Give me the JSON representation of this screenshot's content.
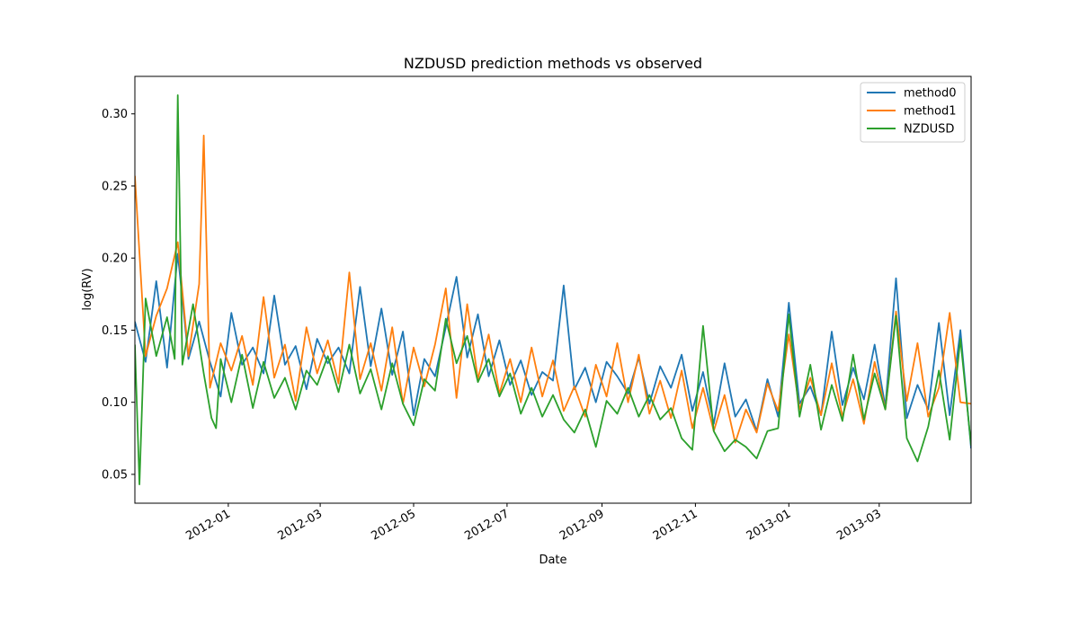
{
  "chart_data": {
    "type": "line",
    "title": "NZDUSD prediction methods vs observed",
    "xlabel": "Date",
    "ylabel": "log(RV)",
    "xlim": [
      "2011-11-01",
      "2013-04-30"
    ],
    "ylim": [
      0.03,
      0.326
    ],
    "x_ticks": [
      "2012-01",
      "2012-03",
      "2012-05",
      "2012-07",
      "2012-09",
      "2012-11",
      "2013-01",
      "2013-03"
    ],
    "y_ticks": [
      "0.05",
      "0.10",
      "0.15",
      "0.20",
      "0.25",
      "0.30"
    ],
    "legend_position": "top-right",
    "grid": false,
    "series": [
      {
        "name": "method0",
        "color": "#1f77b4",
        "points": [
          [
            "2011-11-01",
            0.156
          ],
          [
            "2011-11-08",
            0.128
          ],
          [
            "2011-11-15",
            0.184
          ],
          [
            "2011-11-22",
            0.124
          ],
          [
            "2011-11-29",
            0.203
          ],
          [
            "2011-12-06",
            0.13
          ],
          [
            "2011-12-13",
            0.156
          ],
          [
            "2011-12-20",
            0.128
          ],
          [
            "2011-12-27",
            0.104
          ],
          [
            "2012-01-03",
            0.162
          ],
          [
            "2012-01-10",
            0.126
          ],
          [
            "2012-01-17",
            0.138
          ],
          [
            "2012-01-24",
            0.12
          ],
          [
            "2012-01-31",
            0.174
          ],
          [
            "2012-02-07",
            0.126
          ],
          [
            "2012-02-14",
            0.139
          ],
          [
            "2012-02-21",
            0.109
          ],
          [
            "2012-02-28",
            0.144
          ],
          [
            "2012-03-06",
            0.127
          ],
          [
            "2012-03-13",
            0.138
          ],
          [
            "2012-03-20",
            0.12
          ],
          [
            "2012-03-27",
            0.18
          ],
          [
            "2012-04-03",
            0.125
          ],
          [
            "2012-04-10",
            0.165
          ],
          [
            "2012-04-17",
            0.119
          ],
          [
            "2012-04-24",
            0.149
          ],
          [
            "2012-05-01",
            0.091
          ],
          [
            "2012-05-08",
            0.13
          ],
          [
            "2012-05-15",
            0.118
          ],
          [
            "2012-05-22",
            0.152
          ],
          [
            "2012-05-29",
            0.187
          ],
          [
            "2012-06-05",
            0.131
          ],
          [
            "2012-06-12",
            0.161
          ],
          [
            "2012-06-19",
            0.118
          ],
          [
            "2012-06-26",
            0.143
          ],
          [
            "2012-07-03",
            0.112
          ],
          [
            "2012-07-10",
            0.129
          ],
          [
            "2012-07-17",
            0.105
          ],
          [
            "2012-07-24",
            0.121
          ],
          [
            "2012-07-31",
            0.115
          ],
          [
            "2012-08-07",
            0.181
          ],
          [
            "2012-08-14",
            0.109
          ],
          [
            "2012-08-21",
            0.124
          ],
          [
            "2012-08-28",
            0.1
          ],
          [
            "2012-09-04",
            0.128
          ],
          [
            "2012-09-11",
            0.118
          ],
          [
            "2012-09-18",
            0.106
          ],
          [
            "2012-09-25",
            0.131
          ],
          [
            "2012-10-02",
            0.099
          ],
          [
            "2012-10-09",
            0.125
          ],
          [
            "2012-10-16",
            0.11
          ],
          [
            "2012-10-23",
            0.133
          ],
          [
            "2012-10-30",
            0.094
          ],
          [
            "2012-11-06",
            0.121
          ],
          [
            "2012-11-13",
            0.085
          ],
          [
            "2012-11-20",
            0.127
          ],
          [
            "2012-11-27",
            0.09
          ],
          [
            "2012-12-04",
            0.102
          ],
          [
            "2012-12-11",
            0.08
          ],
          [
            "2012-12-18",
            0.116
          ],
          [
            "2012-12-25",
            0.09
          ],
          [
            "2013-01-01",
            0.169
          ],
          [
            "2013-01-08",
            0.099
          ],
          [
            "2013-01-15",
            0.111
          ],
          [
            "2013-01-22",
            0.091
          ],
          [
            "2013-01-29",
            0.149
          ],
          [
            "2013-02-05",
            0.098
          ],
          [
            "2013-02-12",
            0.124
          ],
          [
            "2013-02-19",
            0.102
          ],
          [
            "2013-02-26",
            0.14
          ],
          [
            "2013-03-05",
            0.097
          ],
          [
            "2013-03-12",
            0.186
          ],
          [
            "2013-03-19",
            0.089
          ],
          [
            "2013-03-26",
            0.112
          ],
          [
            "2013-04-02",
            0.095
          ],
          [
            "2013-04-09",
            0.155
          ],
          [
            "2013-04-16",
            0.091
          ],
          [
            "2013-04-23",
            0.15
          ],
          [
            "2013-04-30",
            0.068
          ]
        ]
      },
      {
        "name": "method1",
        "color": "#ff7f0e",
        "points": [
          [
            "2011-11-01",
            0.257
          ],
          [
            "2011-11-08",
            0.132
          ],
          [
            "2011-11-15",
            0.16
          ],
          [
            "2011-11-22",
            0.179
          ],
          [
            "2011-11-29",
            0.211
          ],
          [
            "2011-12-06",
            0.132
          ],
          [
            "2011-12-13",
            0.182
          ],
          [
            "2011-12-16",
            0.285
          ],
          [
            "2011-12-20",
            0.11
          ],
          [
            "2011-12-27",
            0.141
          ],
          [
            "2012-01-03",
            0.122
          ],
          [
            "2012-01-10",
            0.146
          ],
          [
            "2012-01-17",
            0.112
          ],
          [
            "2012-01-24",
            0.173
          ],
          [
            "2012-01-31",
            0.117
          ],
          [
            "2012-02-07",
            0.14
          ],
          [
            "2012-02-14",
            0.101
          ],
          [
            "2012-02-21",
            0.152
          ],
          [
            "2012-02-28",
            0.12
          ],
          [
            "2012-03-06",
            0.143
          ],
          [
            "2012-03-13",
            0.113
          ],
          [
            "2012-03-20",
            0.19
          ],
          [
            "2012-03-27",
            0.116
          ],
          [
            "2012-04-03",
            0.141
          ],
          [
            "2012-04-10",
            0.108
          ],
          [
            "2012-04-17",
            0.152
          ],
          [
            "2012-04-24",
            0.099
          ],
          [
            "2012-05-01",
            0.138
          ],
          [
            "2012-05-08",
            0.111
          ],
          [
            "2012-05-15",
            0.14
          ],
          [
            "2012-05-22",
            0.179
          ],
          [
            "2012-05-29",
            0.103
          ],
          [
            "2012-06-05",
            0.168
          ],
          [
            "2012-06-12",
            0.116
          ],
          [
            "2012-06-19",
            0.147
          ],
          [
            "2012-06-26",
            0.106
          ],
          [
            "2012-07-03",
            0.13
          ],
          [
            "2012-07-10",
            0.1
          ],
          [
            "2012-07-17",
            0.138
          ],
          [
            "2012-07-24",
            0.104
          ],
          [
            "2012-07-31",
            0.129
          ],
          [
            "2012-08-07",
            0.094
          ],
          [
            "2012-08-14",
            0.111
          ],
          [
            "2012-08-21",
            0.09
          ],
          [
            "2012-08-28",
            0.126
          ],
          [
            "2012-09-04",
            0.104
          ],
          [
            "2012-09-11",
            0.141
          ],
          [
            "2012-09-18",
            0.1
          ],
          [
            "2012-09-25",
            0.133
          ],
          [
            "2012-10-02",
            0.092
          ],
          [
            "2012-10-09",
            0.115
          ],
          [
            "2012-10-16",
            0.089
          ],
          [
            "2012-10-23",
            0.122
          ],
          [
            "2012-10-30",
            0.082
          ],
          [
            "2012-11-06",
            0.11
          ],
          [
            "2012-11-13",
            0.08
          ],
          [
            "2012-11-20",
            0.105
          ],
          [
            "2012-11-27",
            0.072
          ],
          [
            "2012-12-04",
            0.095
          ],
          [
            "2012-12-11",
            0.079
          ],
          [
            "2012-12-18",
            0.113
          ],
          [
            "2012-12-25",
            0.094
          ],
          [
            "2013-01-01",
            0.147
          ],
          [
            "2013-01-08",
            0.095
          ],
          [
            "2013-01-15",
            0.117
          ],
          [
            "2013-01-22",
            0.091
          ],
          [
            "2013-01-29",
            0.127
          ],
          [
            "2013-02-05",
            0.09
          ],
          [
            "2013-02-12",
            0.116
          ],
          [
            "2013-02-19",
            0.085
          ],
          [
            "2013-02-26",
            0.128
          ],
          [
            "2013-03-05",
            0.095
          ],
          [
            "2013-03-12",
            0.163
          ],
          [
            "2013-03-19",
            0.101
          ],
          [
            "2013-03-26",
            0.141
          ],
          [
            "2013-04-02",
            0.09
          ],
          [
            "2013-04-09",
            0.11
          ],
          [
            "2013-04-16",
            0.162
          ],
          [
            "2013-04-23",
            0.1
          ],
          [
            "2013-04-30",
            0.099
          ]
        ]
      },
      {
        "name": "NZDUSD",
        "color": "#2ca02c",
        "points": [
          [
            "2011-11-01",
            0.14
          ],
          [
            "2011-11-04",
            0.043
          ],
          [
            "2011-11-08",
            0.172
          ],
          [
            "2011-11-15",
            0.132
          ],
          [
            "2011-11-22",
            0.159
          ],
          [
            "2011-11-27",
            0.13
          ],
          [
            "2011-11-29",
            0.313
          ],
          [
            "2011-12-02",
            0.126
          ],
          [
            "2011-12-09",
            0.168
          ],
          [
            "2011-12-16",
            0.12
          ],
          [
            "2011-12-21",
            0.089
          ],
          [
            "2011-12-24",
            0.082
          ],
          [
            "2011-12-27",
            0.13
          ],
          [
            "2012-01-03",
            0.1
          ],
          [
            "2012-01-10",
            0.133
          ],
          [
            "2012-01-17",
            0.096
          ],
          [
            "2012-01-24",
            0.128
          ],
          [
            "2012-01-31",
            0.103
          ],
          [
            "2012-02-07",
            0.117
          ],
          [
            "2012-02-14",
            0.095
          ],
          [
            "2012-02-21",
            0.122
          ],
          [
            "2012-02-28",
            0.112
          ],
          [
            "2012-03-06",
            0.132
          ],
          [
            "2012-03-13",
            0.107
          ],
          [
            "2012-03-20",
            0.14
          ],
          [
            "2012-03-27",
            0.106
          ],
          [
            "2012-04-03",
            0.123
          ],
          [
            "2012-04-10",
            0.095
          ],
          [
            "2012-04-17",
            0.127
          ],
          [
            "2012-04-24",
            0.099
          ],
          [
            "2012-05-01",
            0.084
          ],
          [
            "2012-05-08",
            0.116
          ],
          [
            "2012-05-15",
            0.108
          ],
          [
            "2012-05-22",
            0.158
          ],
          [
            "2012-05-29",
            0.127
          ],
          [
            "2012-06-05",
            0.146
          ],
          [
            "2012-06-12",
            0.114
          ],
          [
            "2012-06-19",
            0.13
          ],
          [
            "2012-06-26",
            0.104
          ],
          [
            "2012-07-03",
            0.12
          ],
          [
            "2012-07-10",
            0.092
          ],
          [
            "2012-07-17",
            0.11
          ],
          [
            "2012-07-24",
            0.09
          ],
          [
            "2012-07-31",
            0.105
          ],
          [
            "2012-08-07",
            0.088
          ],
          [
            "2012-08-14",
            0.079
          ],
          [
            "2012-08-21",
            0.095
          ],
          [
            "2012-08-28",
            0.069
          ],
          [
            "2012-09-04",
            0.101
          ],
          [
            "2012-09-11",
            0.092
          ],
          [
            "2012-09-18",
            0.11
          ],
          [
            "2012-09-25",
            0.09
          ],
          [
            "2012-10-02",
            0.105
          ],
          [
            "2012-10-09",
            0.088
          ],
          [
            "2012-10-16",
            0.096
          ],
          [
            "2012-10-23",
            0.075
          ],
          [
            "2012-10-30",
            0.067
          ],
          [
            "2012-11-06",
            0.153
          ],
          [
            "2012-11-13",
            0.08
          ],
          [
            "2012-11-20",
            0.066
          ],
          [
            "2012-11-27",
            0.074
          ],
          [
            "2012-12-04",
            0.069
          ],
          [
            "2012-12-11",
            0.061
          ],
          [
            "2012-12-18",
            0.08
          ],
          [
            "2012-12-25",
            0.082
          ],
          [
            "2013-01-01",
            0.161
          ],
          [
            "2013-01-08",
            0.09
          ],
          [
            "2013-01-15",
            0.126
          ],
          [
            "2013-01-22",
            0.081
          ],
          [
            "2013-01-29",
            0.112
          ],
          [
            "2013-02-05",
            0.087
          ],
          [
            "2013-02-12",
            0.133
          ],
          [
            "2013-02-19",
            0.088
          ],
          [
            "2013-02-26",
            0.12
          ],
          [
            "2013-03-05",
            0.095
          ],
          [
            "2013-03-12",
            0.16
          ],
          [
            "2013-03-19",
            0.075
          ],
          [
            "2013-03-26",
            0.059
          ],
          [
            "2013-04-02",
            0.083
          ],
          [
            "2013-04-09",
            0.122
          ],
          [
            "2013-04-16",
            0.074
          ],
          [
            "2013-04-23",
            0.144
          ],
          [
            "2013-04-30",
            0.07
          ]
        ]
      }
    ]
  }
}
